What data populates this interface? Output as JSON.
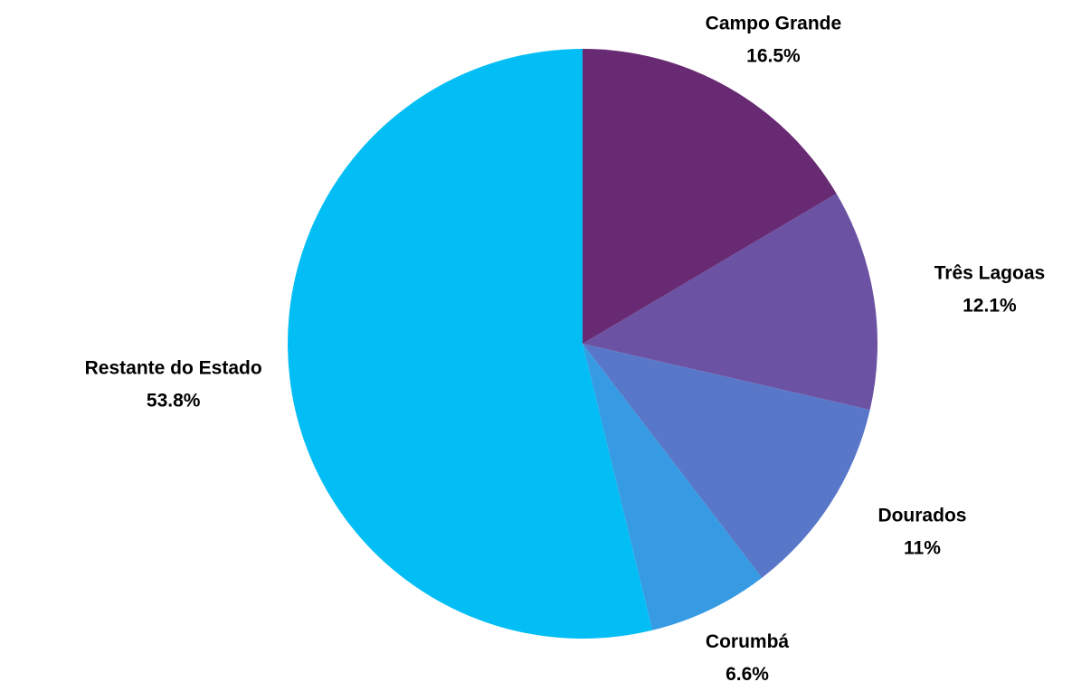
{
  "chart_data": {
    "type": "pie",
    "categories": [
      "Campo Grande",
      "Três Lagoas",
      "Dourados",
      "Corumbá",
      "Restante do Estado"
    ],
    "values": [
      16.5,
      12.1,
      11,
      6.6,
      53.8
    ],
    "value_labels": [
      "16.5%",
      "12.1%",
      "11%",
      "6.6%",
      "53.8%"
    ],
    "colors": [
      "#682a72",
      "#6b52a3",
      "#5877c8",
      "#369be3",
      "#03bef5"
    ]
  }
}
